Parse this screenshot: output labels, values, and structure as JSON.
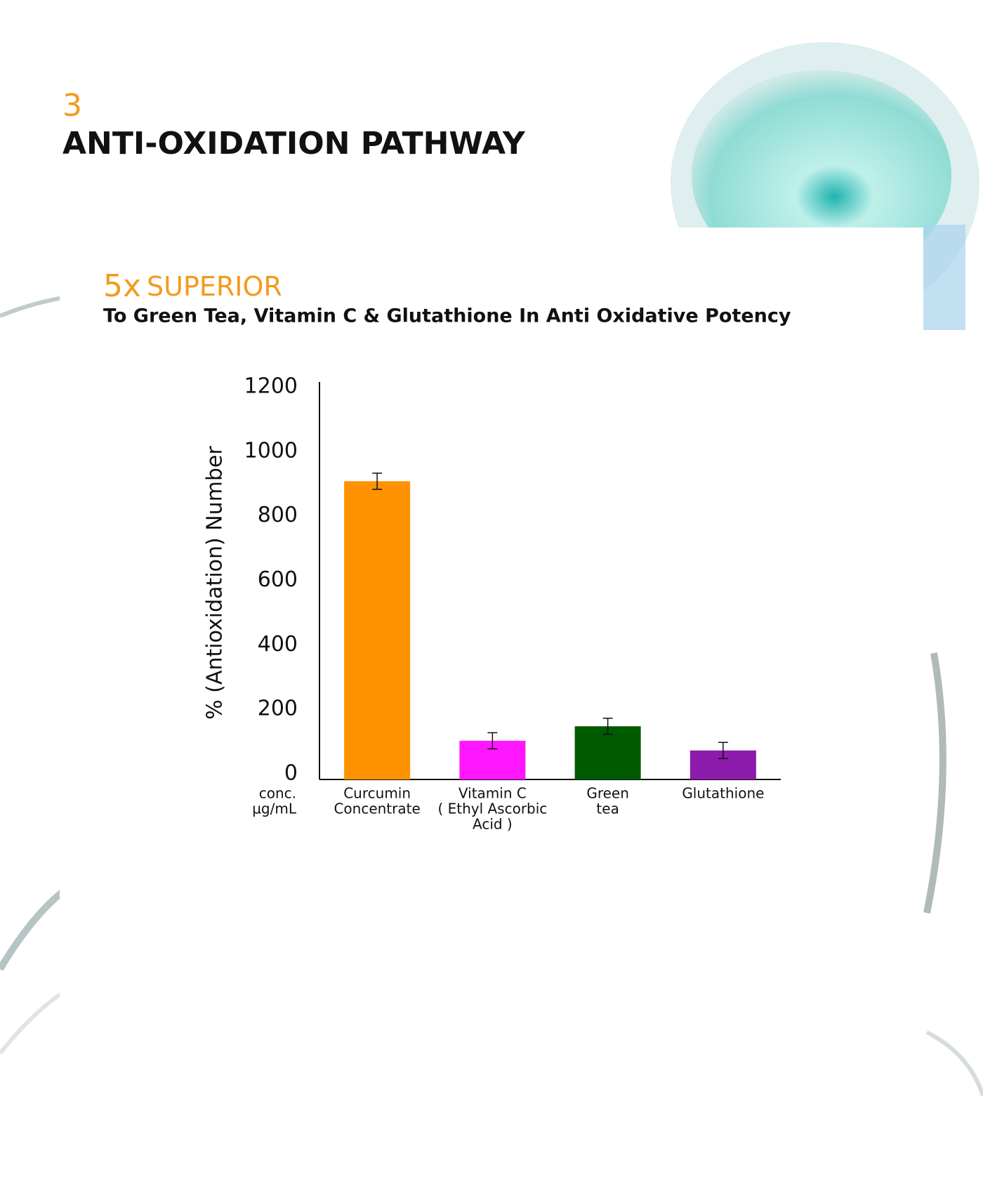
{
  "header": {
    "step": "3",
    "title": "ANTI-OXIDATION PATHWAY"
  },
  "chart_data": {
    "type": "bar",
    "headline": {
      "number": "5x",
      "text": "SUPERIOR"
    },
    "subtitle": "To Green Tea, Vitamin C & Glutathione In Anti Oxidative Potency",
    "ylabel": "% (Antioxidation) Number",
    "xlabel": [
      "conc.",
      "µg/mL"
    ],
    "categories": [
      [
        "Curcumin",
        "Concentrate"
      ],
      [
        "Vitamin C",
        "( Ethyl Ascorbic",
        "Acid )"
      ],
      [
        "Green",
        "tea"
      ],
      [
        "Glutathione"
      ]
    ],
    "values": [
      925,
      120,
      165,
      90
    ],
    "errors": [
      25,
      25,
      25,
      25
    ],
    "colors": [
      "#ff9200",
      "#ff17ff",
      "#005a00",
      "#8c1aaa"
    ],
    "ylim": [
      0,
      1200
    ],
    "yticks": [
      0,
      200,
      400,
      600,
      800,
      1000,
      1200
    ],
    "grid": false
  }
}
